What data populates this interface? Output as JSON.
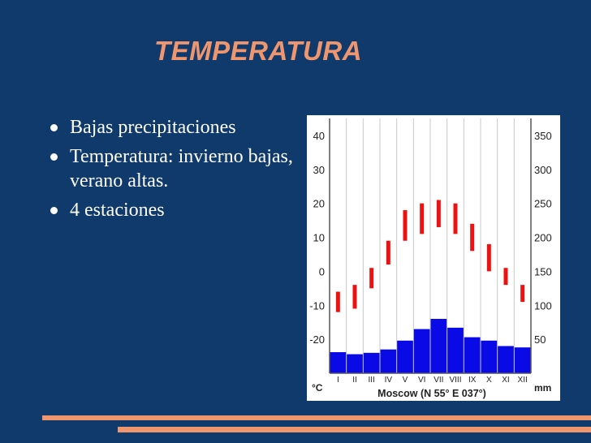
{
  "slide": {
    "title": "TEMPERATURA",
    "bullets": [
      "Bajas precipitaciones",
      "Temperatura: invierno bajas, verano altas.",
      "4 estaciones"
    ]
  },
  "colors": {
    "background": "#0f3a6b",
    "accent": "#f0966f",
    "temperature_bars": "#ee1111",
    "precipitation_bars": "#0a0ae6"
  },
  "chart_data": {
    "type": "climograph",
    "caption": "Moscow (N 55° E 037°)",
    "left_axis_unit": "°C",
    "right_axis_unit": "mm",
    "categories": [
      "I",
      "II",
      "III",
      "IV",
      "V",
      "VI",
      "VII",
      "VIII",
      "IX",
      "X",
      "XI",
      "XII"
    ],
    "left_ticks": [
      40,
      30,
      20,
      10,
      0,
      -10,
      -20
    ],
    "right_ticks": [
      350,
      300,
      250,
      200,
      150,
      100,
      50
    ],
    "ylim_temperature": [
      -30,
      45
    ],
    "ylim_precipitation": [
      0,
      375
    ],
    "grid": true,
    "temperature_range": [
      {
        "min": -12,
        "max": -6
      },
      {
        "min": -11,
        "max": -4
      },
      {
        "min": -5,
        "max": 1
      },
      {
        "min": 2,
        "max": 9
      },
      {
        "min": 9,
        "max": 18
      },
      {
        "min": 11,
        "max": 20
      },
      {
        "min": 13,
        "max": 21
      },
      {
        "min": 11,
        "max": 20
      },
      {
        "min": 6,
        "max": 14
      },
      {
        "min": 0,
        "max": 8
      },
      {
        "min": -4,
        "max": 1
      },
      {
        "min": -9,
        "max": -4
      }
    ],
    "precipitation": [
      31,
      28,
      30,
      35,
      48,
      65,
      80,
      67,
      53,
      48,
      40,
      38
    ]
  }
}
